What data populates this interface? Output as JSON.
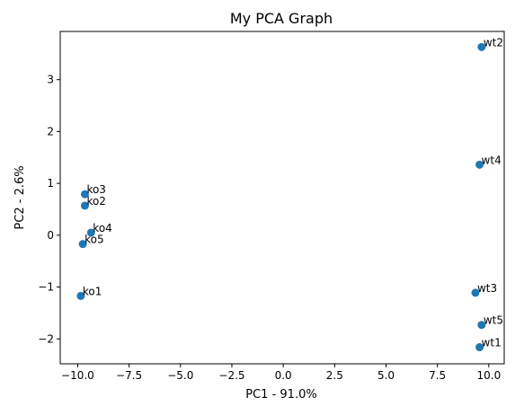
{
  "chart_data": {
    "type": "scatter",
    "title": "My PCA Graph",
    "xlabel": "PC1 - 91.0%",
    "ylabel": "PC2 - 2.6%",
    "xlim": [
      -10.85,
      10.75
    ],
    "ylim": [
      -2.48,
      3.93
    ],
    "xticks": [
      -10.0,
      -7.5,
      -5.0,
      -2.5,
      0.0,
      2.5,
      5.0,
      7.5,
      10.0
    ],
    "xtick_labels": [
      "−10.0",
      "−7.5",
      "−5.0",
      "−2.5",
      "0.0",
      "2.5",
      "5.0",
      "7.5",
      "10.0"
    ],
    "yticks": [
      -2,
      -1,
      0,
      1,
      2,
      3
    ],
    "ytick_labels": [
      "−2",
      "−1",
      "0",
      "1",
      "2",
      "3"
    ],
    "grid": false,
    "marker_color": "#1f77b4",
    "points": [
      {
        "label": "wt2",
        "x": 9.65,
        "y": 3.63
      },
      {
        "label": "wt4",
        "x": 9.55,
        "y": 1.36
      },
      {
        "label": "ko3",
        "x": -9.65,
        "y": 0.79
      },
      {
        "label": "ko2",
        "x": -9.65,
        "y": 0.57
      },
      {
        "label": "ko4",
        "x": -9.35,
        "y": 0.05
      },
      {
        "label": "ko5",
        "x": -9.75,
        "y": -0.17
      },
      {
        "label": "ko1",
        "x": -9.85,
        "y": -1.17
      },
      {
        "label": "wt3",
        "x": 9.35,
        "y": -1.11
      },
      {
        "label": "wt5",
        "x": 9.65,
        "y": -1.73
      },
      {
        "label": "wt1",
        "x": 9.55,
        "y": -2.16
      }
    ]
  }
}
